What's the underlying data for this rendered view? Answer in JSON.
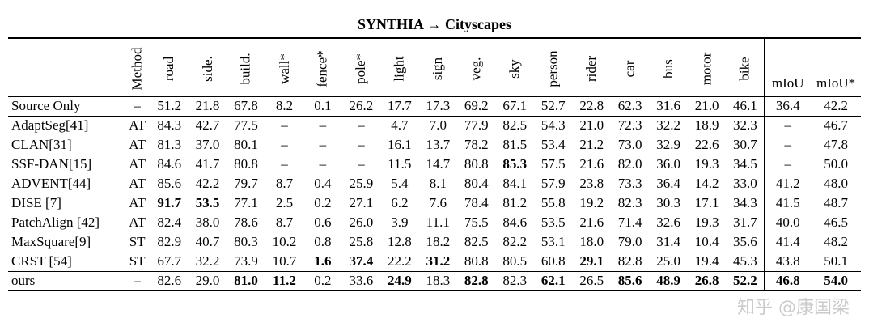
{
  "title": "SYNTHIA → Cityscapes",
  "columns": {
    "method": "Method",
    "classes": [
      "road",
      "side.",
      "build.",
      "wall*",
      "fence*",
      "pole*",
      "light",
      "sign",
      "veg.",
      "sky",
      "person",
      "rider",
      "car",
      "bus",
      "motor",
      "bike"
    ],
    "miou": "mIoU",
    "miou_star": "mIoU*"
  },
  "rows": [
    {
      "name": "Source Only",
      "method": "–",
      "values": [
        "51.2",
        "21.8",
        "67.8",
        "8.2",
        "0.1",
        "26.2",
        "17.7",
        "17.3",
        "69.2",
        "67.1",
        "52.7",
        "22.8",
        "62.3",
        "31.6",
        "21.0",
        "46.1"
      ],
      "miou": "36.4",
      "miou_star": "42.2",
      "bold": []
    },
    {
      "name": "AdaptSeg[41]",
      "method": "AT",
      "values": [
        "84.3",
        "42.7",
        "77.5",
        "–",
        "–",
        "–",
        "4.7",
        "7.0",
        "77.9",
        "82.5",
        "54.3",
        "21.0",
        "72.3",
        "32.2",
        "18.9",
        "32.3"
      ],
      "miou": "–",
      "miou_star": "46.7",
      "bold": []
    },
    {
      "name": "CLAN[31]",
      "method": "AT",
      "values": [
        "81.3",
        "37.0",
        "80.1",
        "–",
        "–",
        "–",
        "16.1",
        "13.7",
        "78.2",
        "81.5",
        "53.4",
        "21.2",
        "73.0",
        "32.9",
        "22.6",
        "30.7"
      ],
      "miou": "–",
      "miou_star": "47.8",
      "bold": []
    },
    {
      "name": "SSF-DAN[15]",
      "method": "AT",
      "values": [
        "84.6",
        "41.7",
        "80.8",
        "–",
        "–",
        "–",
        "11.5",
        "14.7",
        "80.8",
        "85.3",
        "57.5",
        "21.6",
        "82.0",
        "36.0",
        "19.3",
        "34.5"
      ],
      "miou": "–",
      "miou_star": "50.0",
      "bold": [
        9
      ]
    },
    {
      "name": "ADVENT[44]",
      "method": "AT",
      "values": [
        "85.6",
        "42.2",
        "79.7",
        "8.7",
        "0.4",
        "25.9",
        "5.4",
        "8.1",
        "80.4",
        "84.1",
        "57.9",
        "23.8",
        "73.3",
        "36.4",
        "14.2",
        "33.0"
      ],
      "miou": "41.2",
      "miou_star": "48.0",
      "bold": []
    },
    {
      "name": "DISE [7]",
      "method": "AT",
      "values": [
        "91.7",
        "53.5",
        "77.1",
        "2.5",
        "0.2",
        "27.1",
        "6.2",
        "7.6",
        "78.4",
        "81.2",
        "55.8",
        "19.2",
        "82.3",
        "30.3",
        "17.1",
        "34.3"
      ],
      "miou": "41.5",
      "miou_star": "48.7",
      "bold": [
        0,
        1
      ]
    },
    {
      "name": "PatchAlign [42]",
      "method": "AT",
      "values": [
        "82.4",
        "38.0",
        "78.6",
        "8.7",
        "0.6",
        "26.0",
        "3.9",
        "11.1",
        "75.5",
        "84.6",
        "53.5",
        "21.6",
        "71.4",
        "32.6",
        "19.3",
        "31.7"
      ],
      "miou": "40.0",
      "miou_star": "46.5",
      "bold": []
    },
    {
      "name": "MaxSquare[9]",
      "method": "ST",
      "values": [
        "82.9",
        "40.7",
        "80.3",
        "10.2",
        "0.8",
        "25.8",
        "12.8",
        "18.2",
        "82.5",
        "82.2",
        "53.1",
        "18.0",
        "79.0",
        "31.4",
        "10.4",
        "35.6"
      ],
      "miou": "41.4",
      "miou_star": "48.2",
      "bold": []
    },
    {
      "name": "CRST [54]",
      "method": "ST",
      "values": [
        "67.7",
        "32.2",
        "73.9",
        "10.7",
        "1.6",
        "37.4",
        "22.2",
        "31.2",
        "80.8",
        "80.5",
        "60.8",
        "29.1",
        "82.8",
        "25.0",
        "19.4",
        "45.3"
      ],
      "miou": "43.8",
      "miou_star": "50.1",
      "bold": [
        4,
        5,
        7,
        11
      ]
    }
  ],
  "ours": {
    "name": "ours",
    "method": "–",
    "values": [
      "82.6",
      "29.0",
      "81.0",
      "11.2",
      "0.2",
      "33.6",
      "24.9",
      "18.3",
      "82.8",
      "82.3",
      "62.1",
      "26.5",
      "85.6",
      "48.9",
      "26.8",
      "52.2"
    ],
    "miou": "46.8",
    "miou_star": "54.0",
    "bold": [
      2,
      3,
      6,
      8,
      10,
      12,
      13,
      14,
      15
    ],
    "bold_miou": true,
    "bold_miou_star": true
  },
  "watermark": "知乎 @康国梁"
}
